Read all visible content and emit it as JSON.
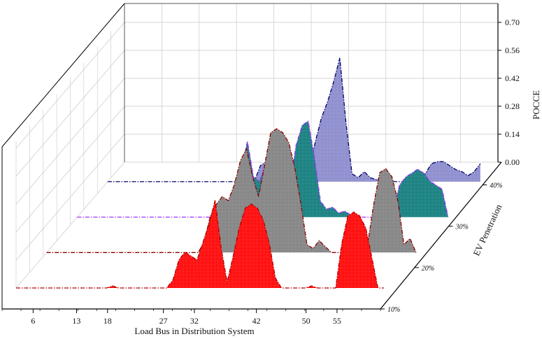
{
  "chart_data": {
    "type": "area",
    "title": "",
    "xlabel": "Load Bus in Distribution System",
    "ylabel": "EV Penetration",
    "zlabel": "POCCE",
    "x_ticks": [
      6,
      13,
      18,
      27,
      32,
      42,
      50,
      55
    ],
    "x_range": [
      1,
      62
    ],
    "z_ticks": [
      "0.00",
      "0.14",
      "0.28",
      "0.42",
      "0.56",
      "0.70"
    ],
    "z_range": [
      0,
      0.7
    ],
    "grid": true,
    "series": [
      {
        "name": "10%",
        "color": "#ff0000",
        "edge": "#b30000",
        "x": [
          1,
          16,
          17,
          18,
          26,
          27,
          28,
          29,
          30,
          31,
          32,
          33,
          34,
          35,
          36,
          37,
          38,
          39,
          40,
          41,
          42,
          43,
          44,
          45,
          46,
          47,
          48,
          49,
          50,
          51,
          52,
          53,
          54,
          55,
          56,
          57,
          58,
          59,
          60,
          61,
          62
        ],
        "values": [
          0,
          0,
          0.01,
          0,
          0,
          0.04,
          0.14,
          0.18,
          0.16,
          0.14,
          0.23,
          0.32,
          0.44,
          0.2,
          0.03,
          0.16,
          0.3,
          0.4,
          0.42,
          0.4,
          0.34,
          0.22,
          0.05,
          0,
          0,
          0,
          0,
          0,
          0.01,
          0,
          0,
          0,
          0,
          0.22,
          0.36,
          0.38,
          0.36,
          0.3,
          0.15,
          0,
          0
        ]
      },
      {
        "name": "20%",
        "color": "#7f7f7f",
        "edge": "#8b0000",
        "x": [
          1,
          26,
          27,
          28,
          29,
          30,
          31,
          32,
          33,
          34,
          35,
          36,
          37,
          38,
          39,
          40,
          41,
          42,
          43,
          44,
          45,
          46,
          47,
          48,
          49,
          50,
          51,
          52,
          53,
          54,
          55,
          56,
          57,
          58,
          59,
          60,
          61,
          62
        ],
        "values": [
          0,
          0,
          0.05,
          0.18,
          0.24,
          0.28,
          0.26,
          0.34,
          0.46,
          0.52,
          0.38,
          0.28,
          0.44,
          0.6,
          0.62,
          0.6,
          0.55,
          0.42,
          0.24,
          0.04,
          0.02,
          0.06,
          0.03,
          0,
          0,
          0,
          0.02,
          0,
          0.02,
          0.04,
          0.24,
          0.4,
          0.42,
          0.38,
          0.26,
          0.04,
          0.07,
          0
        ]
      },
      {
        "name": "30%",
        "color": "#0d7a7a",
        "edge": "#9b30ff",
        "x": [
          1,
          26,
          27,
          28,
          29,
          30,
          31,
          32,
          33,
          34,
          35,
          36,
          37,
          38,
          39,
          40,
          41,
          42,
          43,
          44,
          45,
          46,
          47,
          48,
          49,
          50,
          51,
          52,
          53,
          54,
          55,
          56,
          57,
          58,
          59,
          60,
          61,
          62
        ],
        "values": [
          0,
          0,
          0.12,
          0.24,
          0.38,
          0.2,
          0.18,
          0.26,
          0.32,
          0.4,
          0.22,
          0.16,
          0.36,
          0.46,
          0.48,
          0.3,
          0.08,
          0.04,
          0.05,
          0.02,
          0.03,
          0.01,
          0,
          0,
          0,
          0,
          0,
          0,
          0.04,
          0.16,
          0.2,
          0.22,
          0.24,
          0.22,
          0.18,
          0.16,
          0.14,
          0
        ]
      },
      {
        "name": "40%",
        "color": "#8888cc",
        "edge": "#000066",
        "x": [
          1,
          25,
          26,
          27,
          28,
          29,
          30,
          31,
          32,
          33,
          34,
          35,
          36,
          37,
          38,
          39,
          40,
          41,
          42,
          43,
          44,
          45,
          46,
          47,
          48,
          49,
          50,
          51,
          52,
          53,
          54,
          55,
          56,
          57,
          58,
          59,
          60,
          61,
          62
        ],
        "values": [
          0,
          0,
          0.08,
          0.1,
          0.1,
          0.09,
          0.07,
          0.13,
          0.08,
          0.04,
          0.06,
          0.2,
          0.32,
          0.4,
          0.5,
          0.62,
          0.3,
          0.04,
          0.02,
          0.05,
          0.02,
          0.01,
          0.02,
          0.01,
          0,
          0,
          0,
          0,
          0,
          0.04,
          0.09,
          0.1,
          0.1,
          0.08,
          0.06,
          0.05,
          0.03,
          0.05,
          0.09
        ]
      }
    ]
  }
}
